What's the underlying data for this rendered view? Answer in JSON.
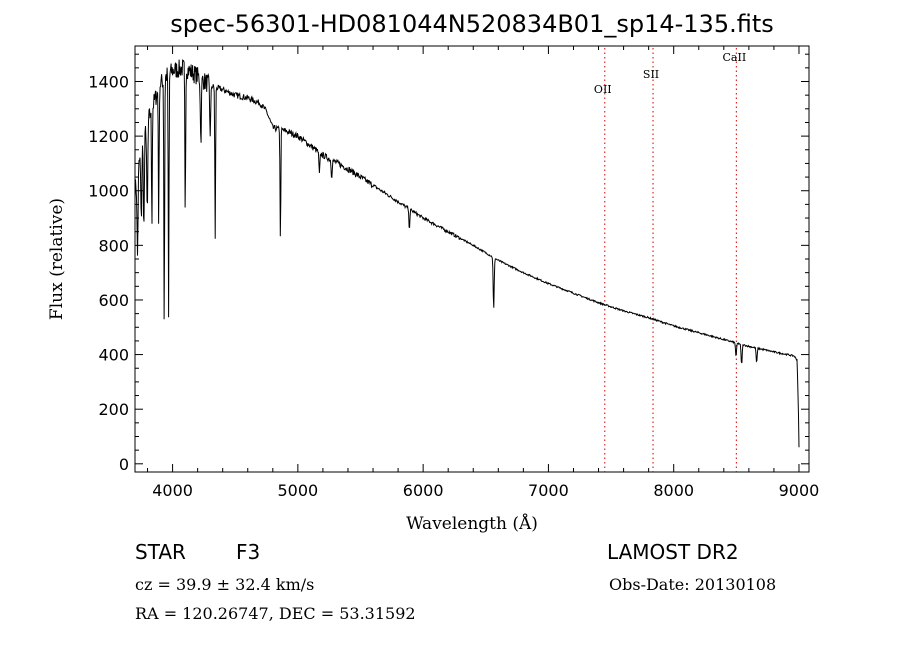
{
  "chart_data": {
    "type": "line",
    "title": "spec-56301-HD081044N520834B01_sp14-135.fits",
    "xlabel": "Wavelength (Å)",
    "ylabel": "Flux (relative)",
    "xlim": [
      3700,
      9080
    ],
    "ylim": [
      -30,
      1530
    ],
    "xticks": [
      4000,
      5000,
      6000,
      7000,
      8000,
      9000
    ],
    "yticks": [
      0,
      200,
      400,
      600,
      800,
      1000,
      1200,
      1400
    ],
    "series": [
      {
        "name": "spectrum",
        "continuum": [
          [
            3700,
            1000
          ],
          [
            3750,
            1150
          ],
          [
            3800,
            1250
          ],
          [
            3850,
            1320
          ],
          [
            3900,
            1390
          ],
          [
            3950,
            1420
          ],
          [
            4000,
            1440
          ],
          [
            4100,
            1450
          ],
          [
            4200,
            1420
          ],
          [
            4300,
            1385
          ],
          [
            4400,
            1370
          ],
          [
            4500,
            1350
          ],
          [
            4600,
            1340
          ],
          [
            4700,
            1320
          ],
          [
            4750,
            1290
          ],
          [
            4800,
            1230
          ],
          [
            4900,
            1220
          ],
          [
            5000,
            1200
          ],
          [
            5200,
            1130
          ],
          [
            5400,
            1080
          ],
          [
            5600,
            1020
          ],
          [
            5800,
            960
          ],
          [
            6000,
            900
          ],
          [
            6200,
            850
          ],
          [
            6400,
            800
          ],
          [
            6600,
            745
          ],
          [
            6800,
            700
          ],
          [
            7000,
            660
          ],
          [
            7200,
            625
          ],
          [
            7400,
            590
          ],
          [
            7600,
            560
          ],
          [
            7800,
            535
          ],
          [
            8000,
            505
          ],
          [
            8200,
            480
          ],
          [
            8400,
            455
          ],
          [
            8600,
            430
          ],
          [
            8800,
            410
          ],
          [
            8960,
            395
          ],
          [
            8985,
            380
          ],
          [
            8995,
            200
          ],
          [
            9000,
            60
          ]
        ],
        "absorption_lines": [
          {
            "wavelength": 3720,
            "depth": 300
          },
          {
            "wavelength": 3750,
            "depth": 260
          },
          {
            "wavelength": 3771,
            "depth": 330
          },
          {
            "wavelength": 3798,
            "depth": 350
          },
          {
            "wavelength": 3835,
            "depth": 420
          },
          {
            "wavelength": 3889,
            "depth": 500
          },
          {
            "wavelength": 3933,
            "depth": 920
          },
          {
            "wavelength": 3968,
            "depth": 900
          },
          {
            "wavelength": 4101,
            "depth": 560
          },
          {
            "wavelength": 4226,
            "depth": 230
          },
          {
            "wavelength": 4300,
            "depth": 180
          },
          {
            "wavelength": 4340,
            "depth": 560
          },
          {
            "wavelength": 4861,
            "depth": 420
          },
          {
            "wavelength": 5172,
            "depth": 80
          },
          {
            "wavelength": 5270,
            "depth": 60
          },
          {
            "wavelength": 5890,
            "depth": 70
          },
          {
            "wavelength": 6563,
            "depth": 190
          },
          {
            "wavelength": 8498,
            "depth": 50
          },
          {
            "wavelength": 8542,
            "depth": 75
          },
          {
            "wavelength": 8662,
            "depth": 55
          }
        ]
      }
    ],
    "line_markers": [
      {
        "label": "OII",
        "wavelength": 7450
      },
      {
        "label": "SII",
        "wavelength": 7835
      },
      {
        "label": "CaII",
        "wavelength": 8500
      }
    ]
  },
  "info": {
    "object_class": "STAR",
    "subclass": "F3",
    "survey": "LAMOST DR2",
    "redshift": "cz = 39.9 ± 32.4 km/s",
    "obs_date": "Obs-Date: 20130108",
    "coords": "RA = 120.26747, DEC =  53.31592"
  },
  "colors": {
    "line": "#000000",
    "marker": "#d40000"
  }
}
